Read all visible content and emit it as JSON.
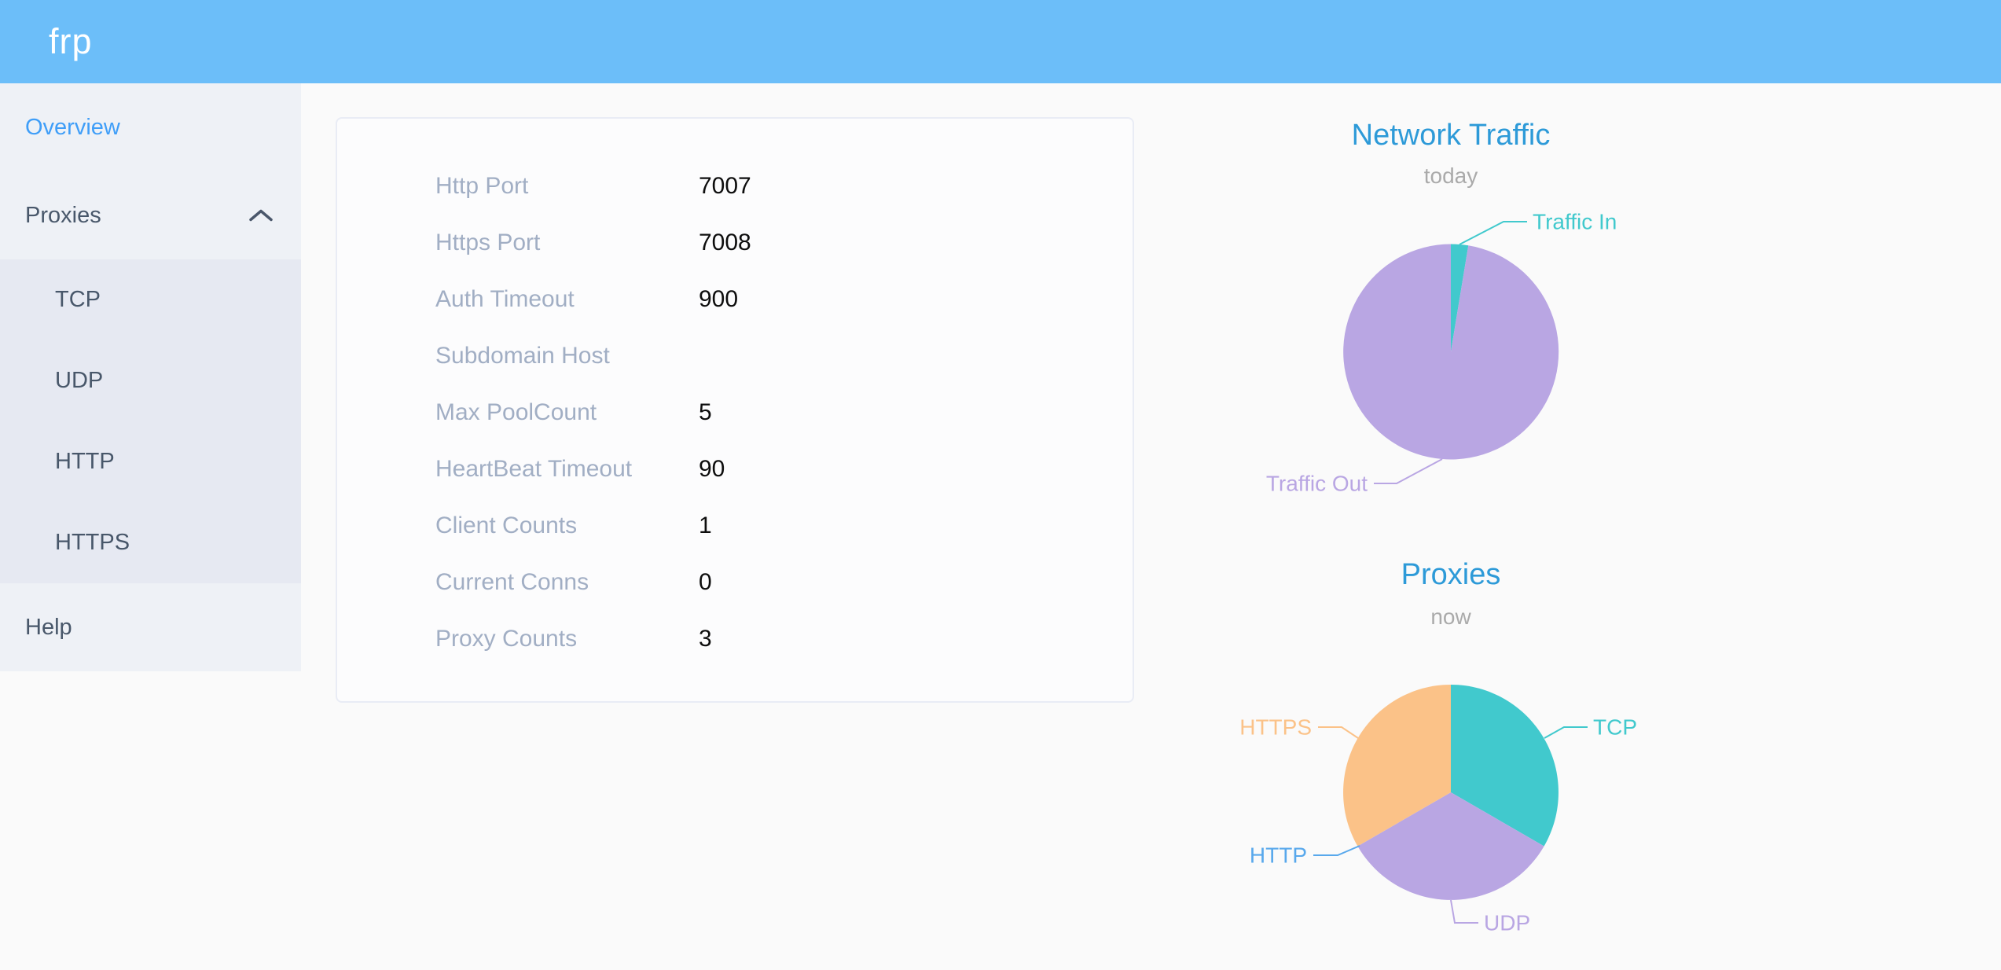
{
  "app": {
    "logo_text": "frp"
  },
  "sidebar": {
    "overview_label": "Overview",
    "proxies_label": "Proxies",
    "proxies_children": [
      {
        "label": "TCP"
      },
      {
        "label": "UDP"
      },
      {
        "label": "HTTP"
      },
      {
        "label": "HTTPS"
      }
    ],
    "help_label": "Help"
  },
  "server_info": {
    "rows": [
      {
        "label": "Http Port",
        "value": "7007"
      },
      {
        "label": "Https Port",
        "value": "7008"
      },
      {
        "label": "Auth Timeout",
        "value": "900"
      },
      {
        "label": "Subdomain Host",
        "value": ""
      },
      {
        "label": "Max PoolCount",
        "value": "5"
      },
      {
        "label": "HeartBeat Timeout",
        "value": "90"
      },
      {
        "label": "Client Counts",
        "value": "1"
      },
      {
        "label": "Current Conns",
        "value": "0"
      },
      {
        "label": "Proxy Counts",
        "value": "3"
      }
    ]
  },
  "chart_data": [
    {
      "type": "pie",
      "title": "Network Traffic",
      "subtitle": "today",
      "series": [
        {
          "name": "Traffic In",
          "value": 2.6,
          "color": "#41c9cd"
        },
        {
          "name": "Traffic Out",
          "value": 97.4,
          "color": "#b9a6e3"
        }
      ]
    },
    {
      "type": "pie",
      "title": "Proxies",
      "subtitle": "now",
      "series": [
        {
          "name": "TCP",
          "value": 1,
          "color": "#41c9cd"
        },
        {
          "name": "UDP",
          "value": 1,
          "color": "#b9a6e3"
        },
        {
          "name": "HTTP",
          "value": 0,
          "color": "#58a8ec"
        },
        {
          "name": "HTTPS",
          "value": 1,
          "color": "#fbc288"
        }
      ]
    }
  ],
  "colors": {
    "header_bg": "#6cbef9",
    "sidebar_bg": "#eef1f6",
    "submenu_bg": "#e6e9f2",
    "sidebar_text": "#48576a",
    "active_blue": "#3f9ef8",
    "title_blue": "#2d9ad8",
    "subtitle_gray": "#aaaaaa",
    "info_label_gray": "#a1aec4",
    "teal": "#41c9cd",
    "purple": "#b9a6e3",
    "orange": "#fbc288",
    "http_blue": "#58a8ec"
  }
}
